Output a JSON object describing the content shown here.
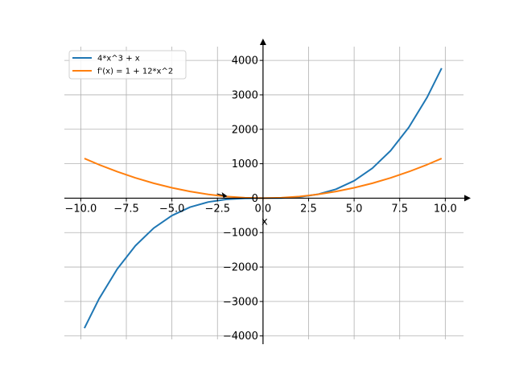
{
  "chart_data": {
    "type": "line",
    "title": "",
    "xlabel": "x",
    "ylabel": "",
    "xlim": [
      -10.9,
      11.0
    ],
    "ylim": [
      -4100,
      4400
    ],
    "grid": true,
    "legend_position": "top-left",
    "x_ticks": [
      -10.0,
      -7.5,
      -5.0,
      -2.5,
      0.0,
      2.5,
      5.0,
      7.5,
      10.0
    ],
    "x_tick_labels": [
      "−10.0",
      "−7.5",
      "−5.0",
      "−2.5",
      "0.0",
      "2.5",
      "5.0",
      "7.5",
      "10.0"
    ],
    "y_ticks": [
      -4000,
      -3000,
      -2000,
      -1000,
      0,
      1000,
      2000,
      3000,
      4000
    ],
    "y_tick_labels": [
      "−4000",
      "−3000",
      "−2000",
      "−1000",
      "0",
      "1000",
      "2000",
      "3000",
      "4000"
    ],
    "series": [
      {
        "name": "4*x^3 + x",
        "color": "#1f77b4",
        "x": [
          -9.8,
          -9.0,
          -8.0,
          -7.0,
          -6.0,
          -5.0,
          -4.0,
          -3.0,
          -2.0,
          -1.0,
          0.0,
          1.0,
          2.0,
          3.0,
          4.0,
          5.0,
          6.0,
          7.0,
          8.0,
          9.0,
          9.8
        ],
        "y": [
          -3774.6,
          -2925.0,
          -2056.0,
          -1379.0,
          -870.0,
          -505.0,
          -260.0,
          -111.0,
          -34.0,
          -5.0,
          0.0,
          5.0,
          34.0,
          111.0,
          260.0,
          505.0,
          870.0,
          1379.0,
          2056.0,
          2925.0,
          3774.6
        ]
      },
      {
        "name": "f'(x) = 1 + 12*x^2",
        "color": "#ff7f0e",
        "x": [
          -9.8,
          -9.0,
          -8.0,
          -7.0,
          -6.0,
          -5.0,
          -4.0,
          -3.0,
          -2.0,
          -1.0,
          0.0,
          1.0,
          2.0,
          3.0,
          4.0,
          5.0,
          6.0,
          7.0,
          8.0,
          9.0,
          9.8
        ],
        "y": [
          1153.5,
          973.0,
          769.0,
          589.0,
          433.0,
          301.0,
          193.0,
          109.0,
          49.0,
          13.0,
          1.0,
          13.0,
          49.0,
          109.0,
          193.0,
          301.0,
          433.0,
          589.0,
          769.0,
          973.0,
          1153.5
        ]
      }
    ],
    "annotations": [
      {
        "type": "tangent-arrow",
        "x": -2.0,
        "y": 34.0,
        "color": "#000000"
      }
    ]
  }
}
